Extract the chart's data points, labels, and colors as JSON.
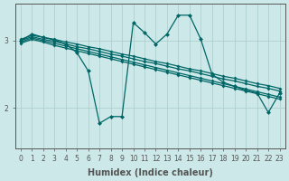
{
  "xlabel": "Humidex (Indice chaleur)",
  "bg_color": "#cce8e8",
  "line_color": "#006666",
  "grid_color": "#aacccc",
  "xlim": [
    -0.5,
    23.5
  ],
  "ylim": [
    1.4,
    3.55
  ],
  "xticks": [
    0,
    1,
    2,
    3,
    4,
    5,
    6,
    7,
    8,
    9,
    10,
    11,
    12,
    13,
    14,
    15,
    16,
    17,
    18,
    19,
    20,
    21,
    22,
    23
  ],
  "yticks": [
    2,
    3
  ],
  "straight_lines": [
    [
      3.02,
      3.08,
      3.05,
      3.02,
      2.98,
      2.95,
      2.91,
      2.88,
      2.84,
      2.8,
      2.77,
      2.73,
      2.69,
      2.66,
      2.62,
      2.58,
      2.55,
      2.51,
      2.47,
      2.44,
      2.4,
      2.36,
      2.33,
      2.29
    ],
    [
      3.0,
      3.06,
      3.02,
      2.99,
      2.95,
      2.91,
      2.88,
      2.84,
      2.8,
      2.77,
      2.73,
      2.69,
      2.66,
      2.62,
      2.58,
      2.55,
      2.51,
      2.47,
      2.43,
      2.4,
      2.36,
      2.32,
      2.29,
      2.25
    ],
    [
      2.98,
      3.04,
      3.0,
      2.96,
      2.92,
      2.88,
      2.84,
      2.8,
      2.76,
      2.72,
      2.68,
      2.64,
      2.6,
      2.56,
      2.52,
      2.48,
      2.44,
      2.4,
      2.36,
      2.32,
      2.28,
      2.24,
      2.2,
      2.16
    ],
    [
      2.96,
      3.02,
      2.98,
      2.93,
      2.89,
      2.85,
      2.81,
      2.77,
      2.73,
      2.69,
      2.65,
      2.61,
      2.57,
      2.53,
      2.49,
      2.45,
      2.41,
      2.37,
      2.33,
      2.29,
      2.25,
      2.21,
      2.17,
      2.13
    ]
  ],
  "jagged_x": [
    0,
    1,
    2,
    3,
    4,
    5,
    6,
    7,
    8,
    9,
    10,
    11,
    12,
    13,
    14,
    15,
    16,
    17,
    18,
    19,
    20,
    21,
    22,
    23
  ],
  "jagged_y": [
    3.0,
    3.1,
    3.05,
    3.01,
    2.95,
    2.82,
    2.55,
    1.77,
    1.87,
    1.87,
    3.27,
    3.12,
    2.95,
    3.1,
    3.38,
    3.38,
    3.02,
    2.5,
    2.38,
    2.32,
    2.26,
    2.22,
    1.93,
    2.22
  ],
  "marker_size": 2.5,
  "line_width": 0.9,
  "axis_color": "#555555",
  "tick_fontsize": 5.5,
  "label_fontsize": 7
}
